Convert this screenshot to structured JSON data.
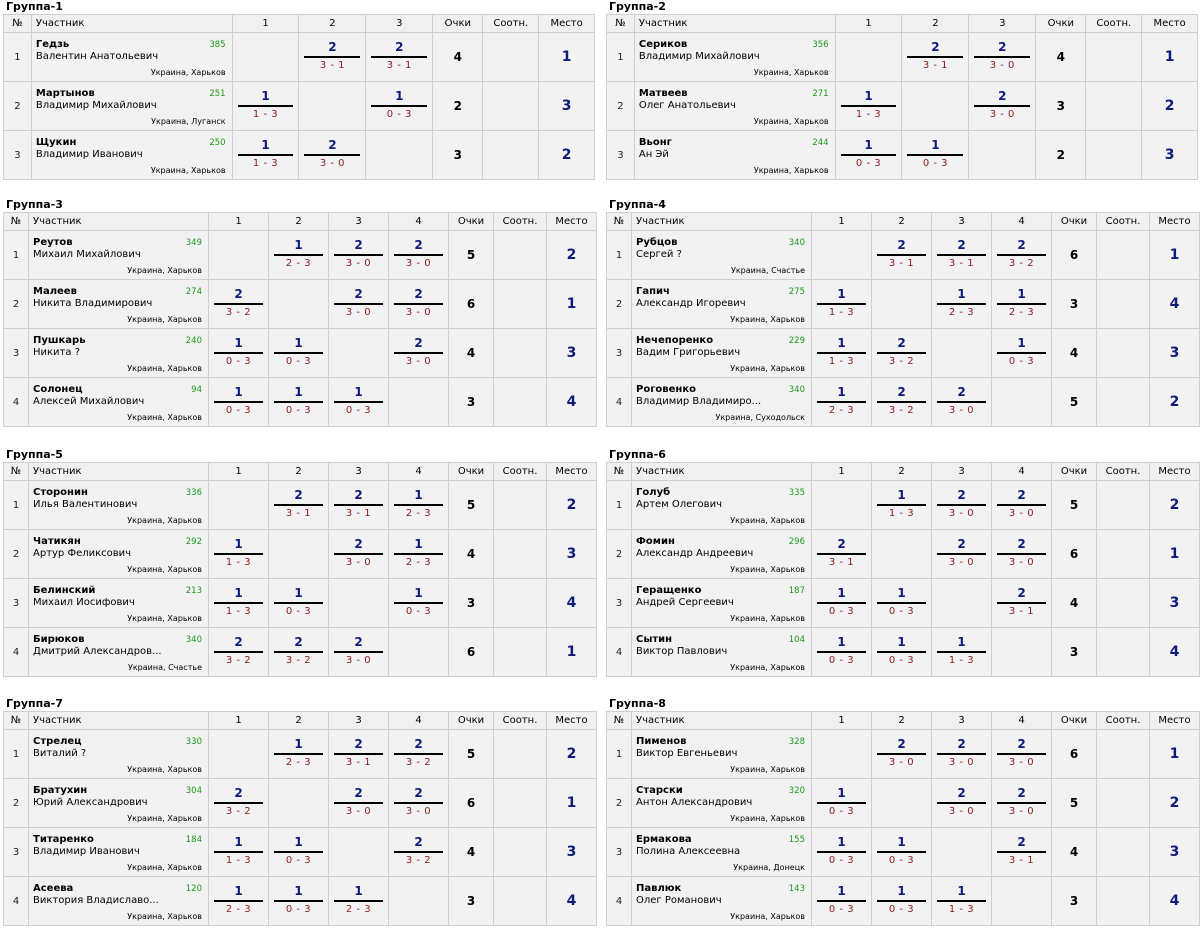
{
  "headers": {
    "no": "№",
    "player": "Участник",
    "score": "Очки",
    "ratio": "Соотн.",
    "place": "Место"
  },
  "groups": [
    {
      "title": "Группа-1",
      "players": [
        {
          "no": "1",
          "surname": "Гедзь",
          "name": "Валентин Анатольевич",
          "rating": "385",
          "country": "Украина",
          "city": "Харьков",
          "results": [
            null,
            {
              "p": "2",
              "s": "3 - 1"
            },
            {
              "p": "2",
              "s": "3 - 1"
            }
          ],
          "score": "4",
          "ratio": "",
          "place": "1"
        },
        {
          "no": "2",
          "surname": "Мартынов",
          "name": "Владимир Михайлович",
          "rating": "251",
          "country": "Украина",
          "city": "Луганск",
          "results": [
            {
              "p": "1",
              "s": "1 - 3"
            },
            null,
            {
              "p": "1",
              "s": "0 - 3"
            }
          ],
          "score": "2",
          "ratio": "",
          "place": "3"
        },
        {
          "no": "3",
          "surname": "Щукин",
          "name": "Владимир Иванович",
          "rating": "250",
          "country": "Украина",
          "city": "Харьков",
          "results": [
            {
              "p": "1",
              "s": "1 - 3"
            },
            {
              "p": "2",
              "s": "3 - 0"
            },
            null
          ],
          "score": "3",
          "ratio": "",
          "place": "2"
        }
      ]
    },
    {
      "title": "Группа-2",
      "players": [
        {
          "no": "1",
          "surname": "Сериков",
          "name": "Владимир Михайлович",
          "rating": "356",
          "country": "Украина",
          "city": "Харьков",
          "results": [
            null,
            {
              "p": "2",
              "s": "3 - 1"
            },
            {
              "p": "2",
              "s": "3 - 0"
            }
          ],
          "score": "4",
          "ratio": "",
          "place": "1"
        },
        {
          "no": "2",
          "surname": "Матвеев",
          "name": "Олег Анатольевич",
          "rating": "271",
          "country": "Украина",
          "city": "Харьков",
          "results": [
            {
              "p": "1",
              "s": "1 - 3"
            },
            null,
            {
              "p": "2",
              "s": "3 - 0"
            }
          ],
          "score": "3",
          "ratio": "",
          "place": "2"
        },
        {
          "no": "3",
          "surname": "Вьонг",
          "name": "Ан Эй",
          "rating": "244",
          "country": "Украина",
          "city": "Харьков",
          "results": [
            {
              "p": "1",
              "s": "0 - 3"
            },
            {
              "p": "1",
              "s": "0 - 3"
            },
            null
          ],
          "score": "2",
          "ratio": "",
          "place": "3"
        }
      ]
    },
    {
      "title": "Группа-3",
      "players": [
        {
          "no": "1",
          "surname": "Реутов",
          "name": "Михаил Михайлович",
          "rating": "349",
          "country": "Украина",
          "city": "Харьков",
          "results": [
            null,
            {
              "p": "1",
              "s": "2 - 3"
            },
            {
              "p": "2",
              "s": "3 - 0"
            },
            {
              "p": "2",
              "s": "3 - 0"
            }
          ],
          "score": "5",
          "ratio": "",
          "place": "2"
        },
        {
          "no": "2",
          "surname": "Малеев",
          "name": "Никита Владимирович",
          "rating": "274",
          "country": "Украина",
          "city": "Харьков",
          "results": [
            {
              "p": "2",
              "s": "3 - 2"
            },
            null,
            {
              "p": "2",
              "s": "3 - 0"
            },
            {
              "p": "2",
              "s": "3 - 0"
            }
          ],
          "score": "6",
          "ratio": "",
          "place": "1"
        },
        {
          "no": "3",
          "surname": "Пушкарь",
          "name": "Никита ?",
          "rating": "240",
          "country": "Украина",
          "city": "Харьков",
          "results": [
            {
              "p": "1",
              "s": "0 - 3"
            },
            {
              "p": "1",
              "s": "0 - 3"
            },
            null,
            {
              "p": "2",
              "s": "3 - 0"
            }
          ],
          "score": "4",
          "ratio": "",
          "place": "3"
        },
        {
          "no": "4",
          "surname": "Солонец",
          "name": "Алексей Михайлович",
          "rating": "94",
          "country": "Украина",
          "city": "Харьков",
          "results": [
            {
              "p": "1",
              "s": "0 - 3"
            },
            {
              "p": "1",
              "s": "0 - 3"
            },
            {
              "p": "1",
              "s": "0 - 3"
            },
            null
          ],
          "score": "3",
          "ratio": "",
          "place": "4"
        }
      ]
    },
    {
      "title": "Группа-4",
      "players": [
        {
          "no": "1",
          "surname": "Рубцов",
          "name": "Сергей ?",
          "rating": "340",
          "country": "Украина",
          "city": "Счастье",
          "results": [
            null,
            {
              "p": "2",
              "s": "3 - 1"
            },
            {
              "p": "2",
              "s": "3 - 1"
            },
            {
              "p": "2",
              "s": "3 - 2"
            }
          ],
          "score": "6",
          "ratio": "",
          "place": "1"
        },
        {
          "no": "2",
          "surname": "Гапич",
          "name": "Александр Игоревич",
          "rating": "275",
          "country": "Украина",
          "city": "Харьков",
          "results": [
            {
              "p": "1",
              "s": "1 - 3"
            },
            null,
            {
              "p": "1",
              "s": "2 - 3"
            },
            {
              "p": "1",
              "s": "2 - 3"
            }
          ],
          "score": "3",
          "ratio": "",
          "place": "4"
        },
        {
          "no": "3",
          "surname": "Нечепоренко",
          "name": "Вадим Григорьевич",
          "rating": "229",
          "country": "Украина",
          "city": "Харьков",
          "results": [
            {
              "p": "1",
              "s": "1 - 3"
            },
            {
              "p": "2",
              "s": "3 - 2"
            },
            null,
            {
              "p": "1",
              "s": "0 - 3"
            }
          ],
          "score": "4",
          "ratio": "",
          "place": "3"
        },
        {
          "no": "4",
          "surname": "Роговенко",
          "name": "Владимир Владимиро...",
          "rating": "340",
          "country": "Украина",
          "city": "Суходольск",
          "results": [
            {
              "p": "1",
              "s": "2 - 3"
            },
            {
              "p": "2",
              "s": "3 - 2"
            },
            {
              "p": "2",
              "s": "3 - 0"
            },
            null
          ],
          "score": "5",
          "ratio": "",
          "place": "2"
        }
      ]
    },
    {
      "title": "Группа-5",
      "players": [
        {
          "no": "1",
          "surname": "Сторонин",
          "name": "Илья Валентинович",
          "rating": "336",
          "country": "Украина",
          "city": "Харьков",
          "results": [
            null,
            {
              "p": "2",
              "s": "3 - 1"
            },
            {
              "p": "2",
              "s": "3 - 1"
            },
            {
              "p": "1",
              "s": "2 - 3"
            }
          ],
          "score": "5",
          "ratio": "",
          "place": "2"
        },
        {
          "no": "2",
          "surname": "Чатикян",
          "name": "Артур Феликсович",
          "rating": "292",
          "country": "Украина",
          "city": "Харьков",
          "results": [
            {
              "p": "1",
              "s": "1 - 3"
            },
            null,
            {
              "p": "2",
              "s": "3 - 0"
            },
            {
              "p": "1",
              "s": "2 - 3"
            }
          ],
          "score": "4",
          "ratio": "",
          "place": "3"
        },
        {
          "no": "3",
          "surname": "Белинский",
          "name": "Михаил Иосифович",
          "rating": "213",
          "country": "Украина",
          "city": "Харьков",
          "results": [
            {
              "p": "1",
              "s": "1 - 3"
            },
            {
              "p": "1",
              "s": "0 - 3"
            },
            null,
            {
              "p": "1",
              "s": "0 - 3"
            }
          ],
          "score": "3",
          "ratio": "",
          "place": "4"
        },
        {
          "no": "4",
          "surname": "Бирюков",
          "name": "Дмитрий Александров...",
          "rating": "340",
          "country": "Украина",
          "city": "Счастье",
          "results": [
            {
              "p": "2",
              "s": "3 - 2"
            },
            {
              "p": "2",
              "s": "3 - 2"
            },
            {
              "p": "2",
              "s": "3 - 0"
            },
            null
          ],
          "score": "6",
          "ratio": "",
          "place": "1"
        }
      ]
    },
    {
      "title": "Группа-6",
      "players": [
        {
          "no": "1",
          "surname": "Голуб",
          "name": "Артем Олегович",
          "rating": "335",
          "country": "Украина",
          "city": "Харьков",
          "results": [
            null,
            {
              "p": "1",
              "s": "1 - 3"
            },
            {
              "p": "2",
              "s": "3 - 0"
            },
            {
              "p": "2",
              "s": "3 - 0"
            }
          ],
          "score": "5",
          "ratio": "",
          "place": "2"
        },
        {
          "no": "2",
          "surname": "Фомин",
          "name": "Александр Андреевич",
          "rating": "296",
          "country": "Украина",
          "city": "Харьков",
          "results": [
            {
              "p": "2",
              "s": "3 - 1"
            },
            null,
            {
              "p": "2",
              "s": "3 - 0"
            },
            {
              "p": "2",
              "s": "3 - 0"
            }
          ],
          "score": "6",
          "ratio": "",
          "place": "1"
        },
        {
          "no": "3",
          "surname": "Геращенко",
          "name": "Андрей Сергеевич",
          "rating": "187",
          "country": "Украина",
          "city": "Харьков",
          "results": [
            {
              "p": "1",
              "s": "0 - 3"
            },
            {
              "p": "1",
              "s": "0 - 3"
            },
            null,
            {
              "p": "2",
              "s": "3 - 1"
            }
          ],
          "score": "4",
          "ratio": "",
          "place": "3"
        },
        {
          "no": "4",
          "surname": "Сытин",
          "name": "Виктор Павлович",
          "rating": "104",
          "country": "Украина",
          "city": "Харьков",
          "results": [
            {
              "p": "1",
              "s": "0 - 3"
            },
            {
              "p": "1",
              "s": "0 - 3"
            },
            {
              "p": "1",
              "s": "1 - 3"
            },
            null
          ],
          "score": "3",
          "ratio": "",
          "place": "4"
        }
      ]
    },
    {
      "title": "Группа-7",
      "players": [
        {
          "no": "1",
          "surname": "Стрелец",
          "name": "Виталий ?",
          "rating": "330",
          "country": "Украина",
          "city": "Харьков",
          "results": [
            null,
            {
              "p": "1",
              "s": "2 - 3"
            },
            {
              "p": "2",
              "s": "3 - 1"
            },
            {
              "p": "2",
              "s": "3 - 2"
            }
          ],
          "score": "5",
          "ratio": "",
          "place": "2"
        },
        {
          "no": "2",
          "surname": "Братухин",
          "name": "Юрий Александрович",
          "rating": "304",
          "country": "Украина",
          "city": "Харьков",
          "results": [
            {
              "p": "2",
              "s": "3 - 2"
            },
            null,
            {
              "p": "2",
              "s": "3 - 0"
            },
            {
              "p": "2",
              "s": "3 - 0"
            }
          ],
          "score": "6",
          "ratio": "",
          "place": "1"
        },
        {
          "no": "3",
          "surname": "Титаренко",
          "name": "Владимир Иванович",
          "rating": "184",
          "country": "Украина",
          "city": "Харьков",
          "results": [
            {
              "p": "1",
              "s": "1 - 3"
            },
            {
              "p": "1",
              "s": "0 - 3"
            },
            null,
            {
              "p": "2",
              "s": "3 - 2"
            }
          ],
          "score": "4",
          "ratio": "",
          "place": "3"
        },
        {
          "no": "4",
          "surname": "Асеева",
          "name": "Виктория Владиславо...",
          "rating": "120",
          "country": "Украина",
          "city": "Харьков",
          "results": [
            {
              "p": "1",
              "s": "2 - 3"
            },
            {
              "p": "1",
              "s": "0 - 3"
            },
            {
              "p": "1",
              "s": "2 - 3"
            },
            null
          ],
          "score": "3",
          "ratio": "",
          "place": "4"
        }
      ]
    },
    {
      "title": "Группа-8",
      "players": [
        {
          "no": "1",
          "surname": "Пименов",
          "name": "Виктор Евгеньевич",
          "rating": "328",
          "country": "Украина",
          "city": "Харьков",
          "results": [
            null,
            {
              "p": "2",
              "s": "3 - 0"
            },
            {
              "p": "2",
              "s": "3 - 0"
            },
            {
              "p": "2",
              "s": "3 - 0"
            }
          ],
          "score": "6",
          "ratio": "",
          "place": "1"
        },
        {
          "no": "2",
          "surname": "Старски",
          "name": "Антон Александрович",
          "rating": "320",
          "country": "Украина",
          "city": "Харьков",
          "results": [
            {
              "p": "1",
              "s": "0 - 3"
            },
            null,
            {
              "p": "2",
              "s": "3 - 0"
            },
            {
              "p": "2",
              "s": "3 - 0"
            }
          ],
          "score": "5",
          "ratio": "",
          "place": "2"
        },
        {
          "no": "3",
          "surname": "Ермакова",
          "name": "Полина Алексеевна",
          "rating": "155",
          "country": "Украина",
          "city": "Донецк",
          "results": [
            {
              "p": "1",
              "s": "0 - 3"
            },
            {
              "p": "1",
              "s": "0 - 3"
            },
            null,
            {
              "p": "2",
              "s": "3 - 1"
            }
          ],
          "score": "4",
          "ratio": "",
          "place": "3"
        },
        {
          "no": "4",
          "surname": "Павлюк",
          "name": "Олег Романович",
          "rating": "143",
          "country": "Украина",
          "city": "Харьков",
          "results": [
            {
              "p": "1",
              "s": "0 - 3"
            },
            {
              "p": "1",
              "s": "0 - 3"
            },
            {
              "p": "1",
              "s": "1 - 3"
            },
            null
          ],
          "score": "3",
          "ratio": "",
          "place": "4"
        }
      ]
    }
  ]
}
